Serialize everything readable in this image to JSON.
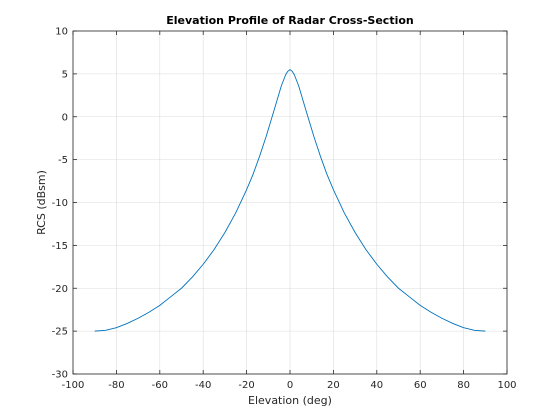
{
  "chart_data": {
    "type": "line",
    "title": "Elevation Profile of Radar Cross-Section",
    "xlabel": "Elevation (deg)",
    "ylabel": "RCS (dBsm)",
    "xlim": [
      -100,
      100
    ],
    "ylim": [
      -30,
      10
    ],
    "xticks": [
      "-100",
      "-80",
      "-60",
      "-40",
      "-20",
      "0",
      "20",
      "40",
      "60",
      "80",
      "100"
    ],
    "yticks": [
      "-30",
      "-25",
      "-20",
      "-15",
      "-10",
      "-5",
      "0",
      "5",
      "10"
    ],
    "grid": true,
    "series": [
      {
        "color": "#0072bd",
        "x": [
          -90,
          -85,
          -80,
          -75,
          -70,
          -65,
          -60,
          -55,
          -50,
          -45,
          -40,
          -35,
          -30,
          -25,
          -20,
          -17,
          -14,
          -11,
          -8,
          -6,
          -4,
          -2,
          -1,
          0,
          1,
          2,
          4,
          6,
          8,
          11,
          14,
          17,
          20,
          25,
          30,
          35,
          40,
          45,
          50,
          55,
          60,
          65,
          70,
          75,
          80,
          85,
          90
        ],
        "y": [
          -25.0,
          -24.9,
          -24.6,
          -24.1,
          -23.5,
          -22.8,
          -22.0,
          -21.0,
          -20.0,
          -18.7,
          -17.2,
          -15.5,
          -13.5,
          -11.2,
          -8.5,
          -6.7,
          -4.6,
          -2.3,
          0.2,
          1.9,
          3.6,
          4.9,
          5.3,
          5.5,
          5.3,
          4.9,
          3.6,
          1.9,
          0.2,
          -2.3,
          -4.6,
          -6.7,
          -8.5,
          -11.2,
          -13.5,
          -15.5,
          -17.2,
          -18.7,
          -20.0,
          -21.0,
          -22.0,
          -22.8,
          -23.5,
          -24.1,
          -24.6,
          -24.9,
          -25.0
        ]
      }
    ]
  }
}
